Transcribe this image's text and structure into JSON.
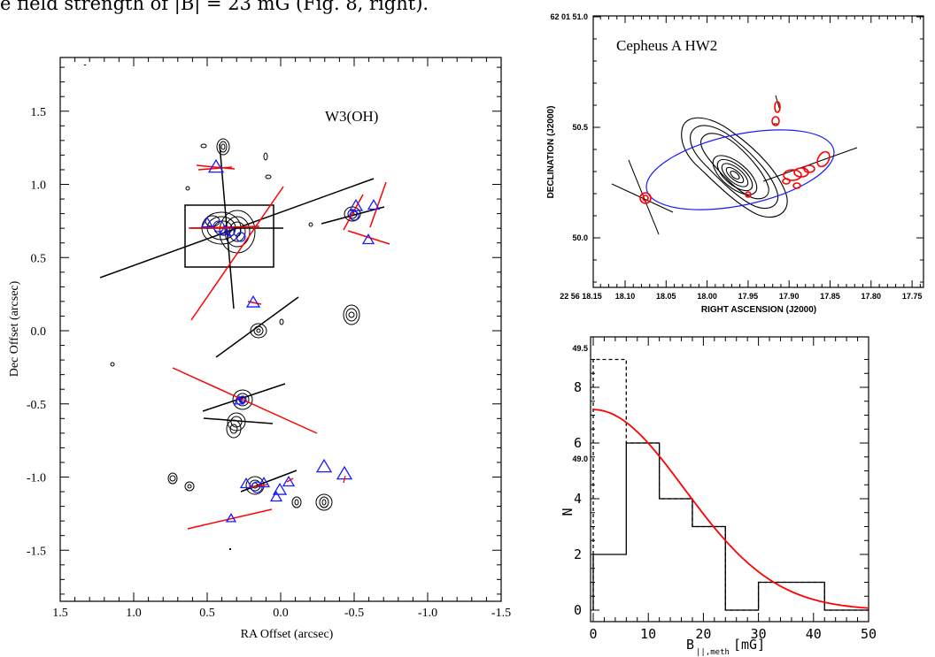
{
  "caption": {
    "text": "e field strength of |B| = 23 mG (Fig. 8, right)."
  },
  "figures": {
    "left": {
      "title": "W3(OH)",
      "xlabel": "RA Offset (arcsec)",
      "ylabel": "Dec Offset (arcsec)",
      "xticks": [
        "1.5",
        "1.0",
        "0.5",
        "0.0",
        "-0.5",
        "-1.0",
        "-1.5"
      ],
      "yticks": [
        "1.5",
        "1.0",
        "0.5",
        "0.0",
        "-0.5",
        "-1.0",
        "-1.5"
      ]
    },
    "top_right": {
      "title": "Cepheus A HW2",
      "xlabel": "RIGHT ASCENSION (J2000)",
      "ylabel": "DECLINATION (J2000)",
      "xticks": [
        "22 56 18.15",
        "18.10",
        "18.05",
        "18.00",
        "17.95",
        "17.90",
        "17.85",
        "17.80",
        "17.75"
      ],
      "yticks": [
        "62 01 51.0",
        "50.5",
        "50.0",
        "49.5",
        "49.0"
      ]
    },
    "bottom_right": {
      "xlabel": "B",
      "xlabel_sub": "||,meth",
      "xlabel_unit": "[mG]",
      "ylabel": "N",
      "xticks": [
        "0",
        "10",
        "20",
        "30",
        "40",
        "50"
      ],
      "yticks": [
        "0",
        "2",
        "4",
        "6",
        "8"
      ]
    }
  },
  "chart_data": [
    {
      "type": "scatter",
      "title": "W3(OH)",
      "xlabel": "RA Offset (arcsec)",
      "ylabel": "Dec Offset (arcsec)",
      "xlim": [
        1.5,
        -1.5
      ],
      "ylim": [
        -1.85,
        1.85
      ],
      "series": []
    },
    {
      "type": "scatter",
      "title": "Cepheus A HW2",
      "xlabel": "RIGHT ASCENSION (J2000)",
      "ylabel": "DECLINATION (J2000)",
      "series": []
    },
    {
      "type": "bar",
      "xlabel": "B||,meth [mG]",
      "ylabel": "N",
      "xlim": [
        0,
        50
      ],
      "ylim": [
        -0.3,
        9.2
      ],
      "bins": [
        [
          0,
          6
        ],
        [
          6,
          12
        ],
        [
          12,
          18
        ],
        [
          18,
          24
        ],
        [
          24,
          30
        ],
        [
          30,
          42
        ],
        [
          42,
          50
        ]
      ],
      "series": [
        {
          "values": [
            2,
            6,
            4,
            3,
            0,
            1,
            0
          ],
          "style": "solid"
        },
        {
          "values": [
            9,
            6,
            4,
            3,
            0,
            1,
            0
          ],
          "style": "dashed"
        }
      ],
      "fit_color": "#ff0000"
    }
  ],
  "colors": {
    "red": "#ff0000",
    "blue": "#1a1aff",
    "black": "#000000"
  }
}
